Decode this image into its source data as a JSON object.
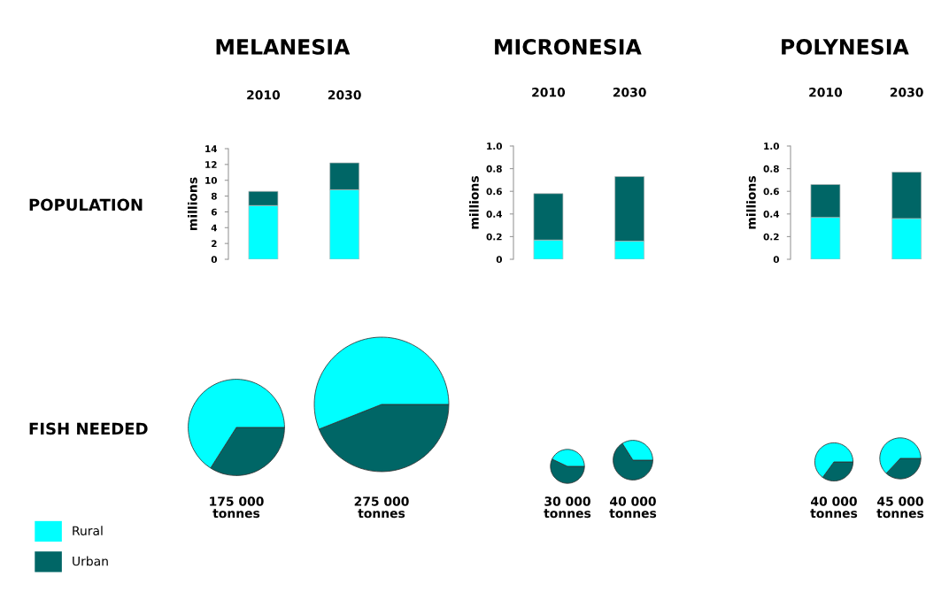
{
  "chart_data": [
    {
      "type": "bar",
      "title": "MELANESIA",
      "ylabel": "millions",
      "categories": [
        "2010",
        "2030"
      ],
      "stacked": true,
      "legend": "bottom left",
      "annotations": [
        "POPULATION"
      ],
      "series": [
        {
          "name": "Rural",
          "color": "#00ffff",
          "values": [
            6.8,
            8.8
          ]
        },
        {
          "name": "Urban",
          "color": "#006666",
          "values": [
            1.8,
            3.4
          ]
        }
      ],
      "ylim": [
        0,
        14
      ],
      "yticks": [
        0,
        2,
        4,
        6,
        8,
        10,
        12,
        14
      ]
    },
    {
      "type": "bar",
      "title": "MICRONESIA",
      "ylabel": "millions",
      "categories": [
        "2010",
        "2030"
      ],
      "stacked": true,
      "series": [
        {
          "color": "#00ffff",
          "values": [
            0.17,
            0.16
          ]
        },
        {
          "color": "#006666",
          "values": [
            0.41,
            0.57
          ]
        }
      ],
      "ylim": [
        0,
        1
      ],
      "yticks": [
        0,
        0.2,
        0.4,
        0.6,
        0.8,
        {
          "value": 1,
          "label": "1.0"
        }
      ]
    },
    {
      "type": "bar",
      "title": "POLYNESIA",
      "ylabel": "millions",
      "categories": [
        "2010",
        "2030"
      ],
      "stacked": true,
      "series": [
        {
          "color": "#00ffff",
          "values": [
            0.37,
            0.36
          ]
        },
        {
          "color": "#006666",
          "values": [
            0.29,
            0.41
          ]
        }
      ],
      "ylim": [
        0,
        1
      ],
      "yticks": [
        0,
        0.2,
        0.4,
        0.6,
        0.8,
        {
          "value": 1,
          "label": "1.0"
        }
      ]
    },
    {
      "type": "pie",
      "categories": [
        null,
        null
      ],
      "values": [
        34,
        66
      ],
      "colors": [
        "#006666",
        "#00ffff"
      ],
      "annotations": [
        "FISH NEEDED",
        "175 000\ntonnes"
      ]
    },
    {
      "type": "pie",
      "categories": [
        null,
        null
      ],
      "values": [
        44,
        56
      ],
      "colors": [
        "#006666",
        "#00ffff"
      ],
      "annotations": [
        "275 000\ntonnes"
      ]
    },
    {
      "type": "pie",
      "categories": [
        null,
        null
      ],
      "values": [
        57,
        43
      ],
      "colors": [
        "#006666",
        "#00ffff"
      ],
      "annotations": [
        "30 000\ntonnes"
      ]
    },
    {
      "type": "pie",
      "categories": [
        null,
        null
      ],
      "values": [
        66,
        34
      ],
      "colors": [
        "#006666",
        "#00ffff"
      ],
      "annotations": [
        "40 000\ntonnes"
      ]
    },
    {
      "type": "pie",
      "categories": [
        null,
        null
      ],
      "values": [
        35,
        65
      ],
      "colors": [
        "#006666",
        "#00ffff"
      ],
      "annotations": [
        "40 000\ntonnes"
      ]
    },
    {
      "type": "pie",
      "categories": [
        null,
        null
      ],
      "values": [
        37,
        63
      ],
      "colors": [
        "#006666",
        "#00ffff"
      ],
      "annotations": [
        "45 000\ntonnes"
      ]
    }
  ]
}
